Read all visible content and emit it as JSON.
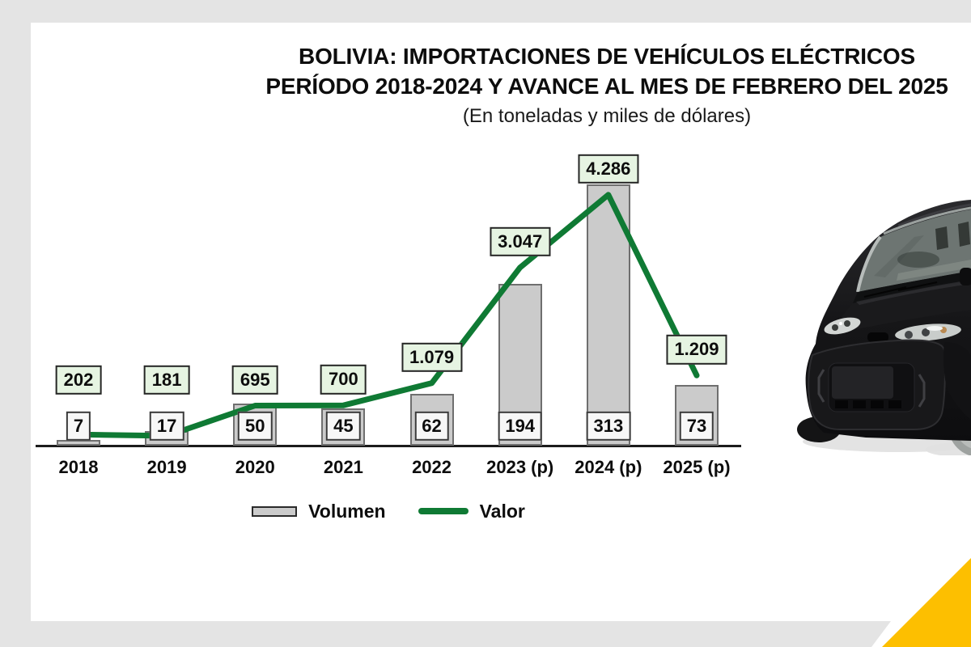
{
  "page": {
    "background_color": "#e4e4e4",
    "slide_color": "#ffffff",
    "accent_triangle_color": "#fdbf00"
  },
  "title": {
    "line1": "BOLIVIA: IMPORTACIONES DE VEHÍCULOS ELÉCTRICOS",
    "line2": "PERÍODO 2018-2024 Y AVANCE AL MES DE FEBRERO DEL 2025",
    "subtitle": "(En toneladas y miles de dólares)"
  },
  "chart_data": {
    "type": "bar",
    "combo": "bars (Volumen, toneladas) + line (Valor, miles de dólares), dual hidden axes",
    "title": "BOLIVIA: IMPORTACIONES DE VEHÍCULOS ELÉCTRICOS PERÍODO 2018-2024 Y AVANCE AL MES DE FEBRERO DEL 2025",
    "subtitle": "(En toneladas y miles de dólares)",
    "categories": [
      "2018",
      "2019",
      "2020",
      "2021",
      "2022",
      "2023 (p)",
      "2024 (p)",
      "2025 (p)"
    ],
    "series": [
      {
        "name": "Volumen",
        "type": "bar",
        "color": "#cbcbcb",
        "border_color": "#6f6f6f",
        "values": [
          7,
          17,
          50,
          45,
          62,
          194,
          313,
          73
        ],
        "value_labels": [
          "7",
          "17",
          "50",
          "45",
          "62",
          "194",
          "313",
          "73"
        ]
      },
      {
        "name": "Valor",
        "type": "line",
        "color": "#0f7a34",
        "values": [
          202,
          181,
          695,
          700,
          1079,
          3047,
          4286,
          1209
        ],
        "value_labels": [
          "202",
          "181",
          "695",
          "700",
          "1.079",
          "3.047",
          "4.286",
          "1.209"
        ]
      }
    ],
    "xlabel": "",
    "ylabel": "",
    "grid": false,
    "axes_hidden": true,
    "legend_position": "bottom",
    "value_label_style": {
      "bar_box_fill": "#f7f7f7",
      "line_box_fill": "#e6f4e2",
      "box_border": "#2e2e2e"
    }
  },
  "image": {
    "alt": "black compact electric city car, front three-quarter view, cropped at right edge"
  }
}
